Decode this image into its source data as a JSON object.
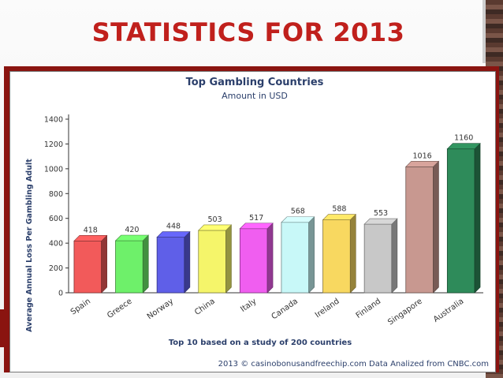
{
  "slide": {
    "title": "STATISTICS FOR 2013"
  },
  "chart_data": {
    "type": "bar",
    "title": "Top Gambling Countries",
    "subtitle": "Amount in USD",
    "ylabel": "Average Annual Loss Per Gambling Adult",
    "xlabel": "Top 10 based on a study of 200 countries",
    "footer": "2013 © casinobonusandfreechip.com Data Analized from CNBC.com",
    "ylim": [
      0,
      1400
    ],
    "yticks": [
      0,
      200,
      400,
      600,
      800,
      1000,
      1200,
      1400
    ],
    "grid": false,
    "legend": "none",
    "categories": [
      "Spain",
      "Greece",
      "Norway",
      "China",
      "Italy",
      "Canada",
      "Ireland",
      "Finland",
      "Singapore",
      "Australia"
    ],
    "values": [
      418,
      420,
      448,
      503,
      517,
      568,
      588,
      553,
      1016,
      1160
    ],
    "colors": [
      "#f25a5a",
      "#6ef06a",
      "#5f5fe8",
      "#f5f56a",
      "#f05ef0",
      "#c8f8f8",
      "#f8d860",
      "#c8c8c8",
      "#c89890",
      "#2e8b5a"
    ]
  }
}
